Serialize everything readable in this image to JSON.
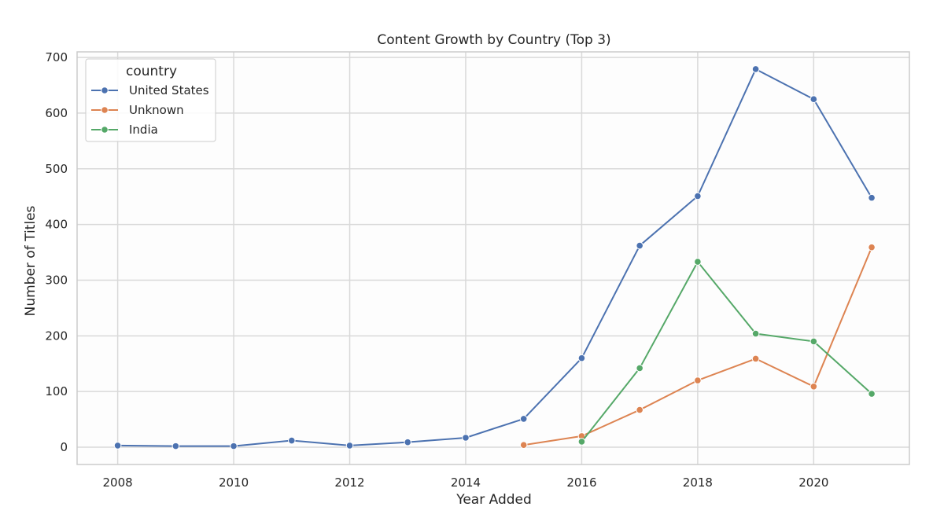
{
  "chart_data": {
    "type": "line",
    "title": "Content Growth by Country (Top 3)",
    "xlabel": "Year Added",
    "ylabel": "Number of Titles",
    "xlim": [
      2007.3,
      2021.65
    ],
    "ylim": [
      -31,
      710
    ],
    "xticks": [
      2008,
      2010,
      2012,
      2014,
      2016,
      2018,
      2020
    ],
    "yticks": [
      0,
      100,
      200,
      300,
      400,
      500,
      600,
      700
    ],
    "grid": true,
    "legend": {
      "title": "country",
      "position": "top-left"
    },
    "series": [
      {
        "name": "United States",
        "color": "#4c72b0",
        "x": [
          2008,
          2009,
          2010,
          2011,
          2012,
          2013,
          2014,
          2015,
          2016,
          2017,
          2018,
          2019,
          2020,
          2021
        ],
        "y": [
          3,
          2,
          2,
          12,
          3,
          9,
          17,
          51,
          160,
          362,
          451,
          679,
          625,
          448
        ]
      },
      {
        "name": "Unknown",
        "color": "#dd8452",
        "x": [
          2015,
          2016,
          2017,
          2018,
          2019,
          2020,
          2021
        ],
        "y": [
          4,
          20,
          67,
          120,
          159,
          109,
          359
        ]
      },
      {
        "name": "India",
        "color": "#55a868",
        "x": [
          2016,
          2017,
          2018,
          2019,
          2020,
          2021
        ],
        "y": [
          10,
          142,
          333,
          204,
          190,
          96
        ]
      }
    ]
  }
}
